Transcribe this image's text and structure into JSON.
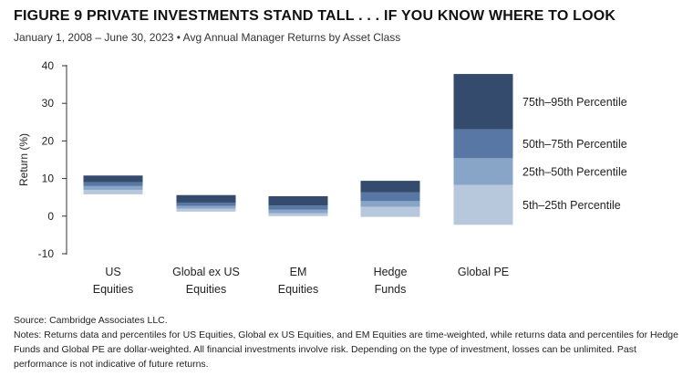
{
  "figure": {
    "title": "FIGURE 9  PRIVATE INVESTMENTS STAND TALL . . . IF YOU KNOW WHERE TO LOOK",
    "subtitle": "January 1, 2008 – June 30, 2023 • Avg Annual Manager Returns by Asset Class"
  },
  "chart_data": {
    "type": "bar",
    "subtype": "stacked-floating-percentile-range",
    "ylabel": "Return (%)",
    "ylim": [
      -10,
      40
    ],
    "yticks": [
      -10,
      0,
      10,
      20,
      30,
      40
    ],
    "categories": [
      "US\nEquities",
      "Global ex US\nEquities",
      "EM\nEquities",
      "Hedge\nFunds",
      "Global PE"
    ],
    "percentiles": {
      "p5": [
        5.8,
        1.2,
        0.0,
        -0.2,
        -2.3
      ],
      "p25": [
        7.0,
        2.0,
        0.8,
        2.5,
        8.3
      ],
      "p50": [
        8.0,
        2.7,
        1.7,
        4.0,
        15.4
      ],
      "p75": [
        9.0,
        3.6,
        2.8,
        6.3,
        23.1
      ],
      "p95": [
        10.8,
        5.6,
        5.3,
        9.4,
        37.8
      ]
    },
    "series": [
      {
        "name": "5th–25th Percentile",
        "color": "#b8c8dc"
      },
      {
        "name": "25th–50th Percentile",
        "color": "#88a4c6"
      },
      {
        "name": "50th–75th Percentile",
        "color": "#5877a5"
      },
      {
        "name": "75th–95th Percentile",
        "color": "#344b6e"
      }
    ],
    "legend_placement": "right of last bar"
  },
  "footnotes": {
    "source": "Source: Cambridge Associates LLC.",
    "notes": "Notes: Returns data and percentiles for US Equities, Global ex US Equities, and EM Equities are time-weighted, while returns data and percentiles for Hedge Funds and Global PE are dollar-weighted. All financial investments involve risk. Depending on the type of investment, losses can be unlimited. Past performance is not indicative of future returns."
  }
}
